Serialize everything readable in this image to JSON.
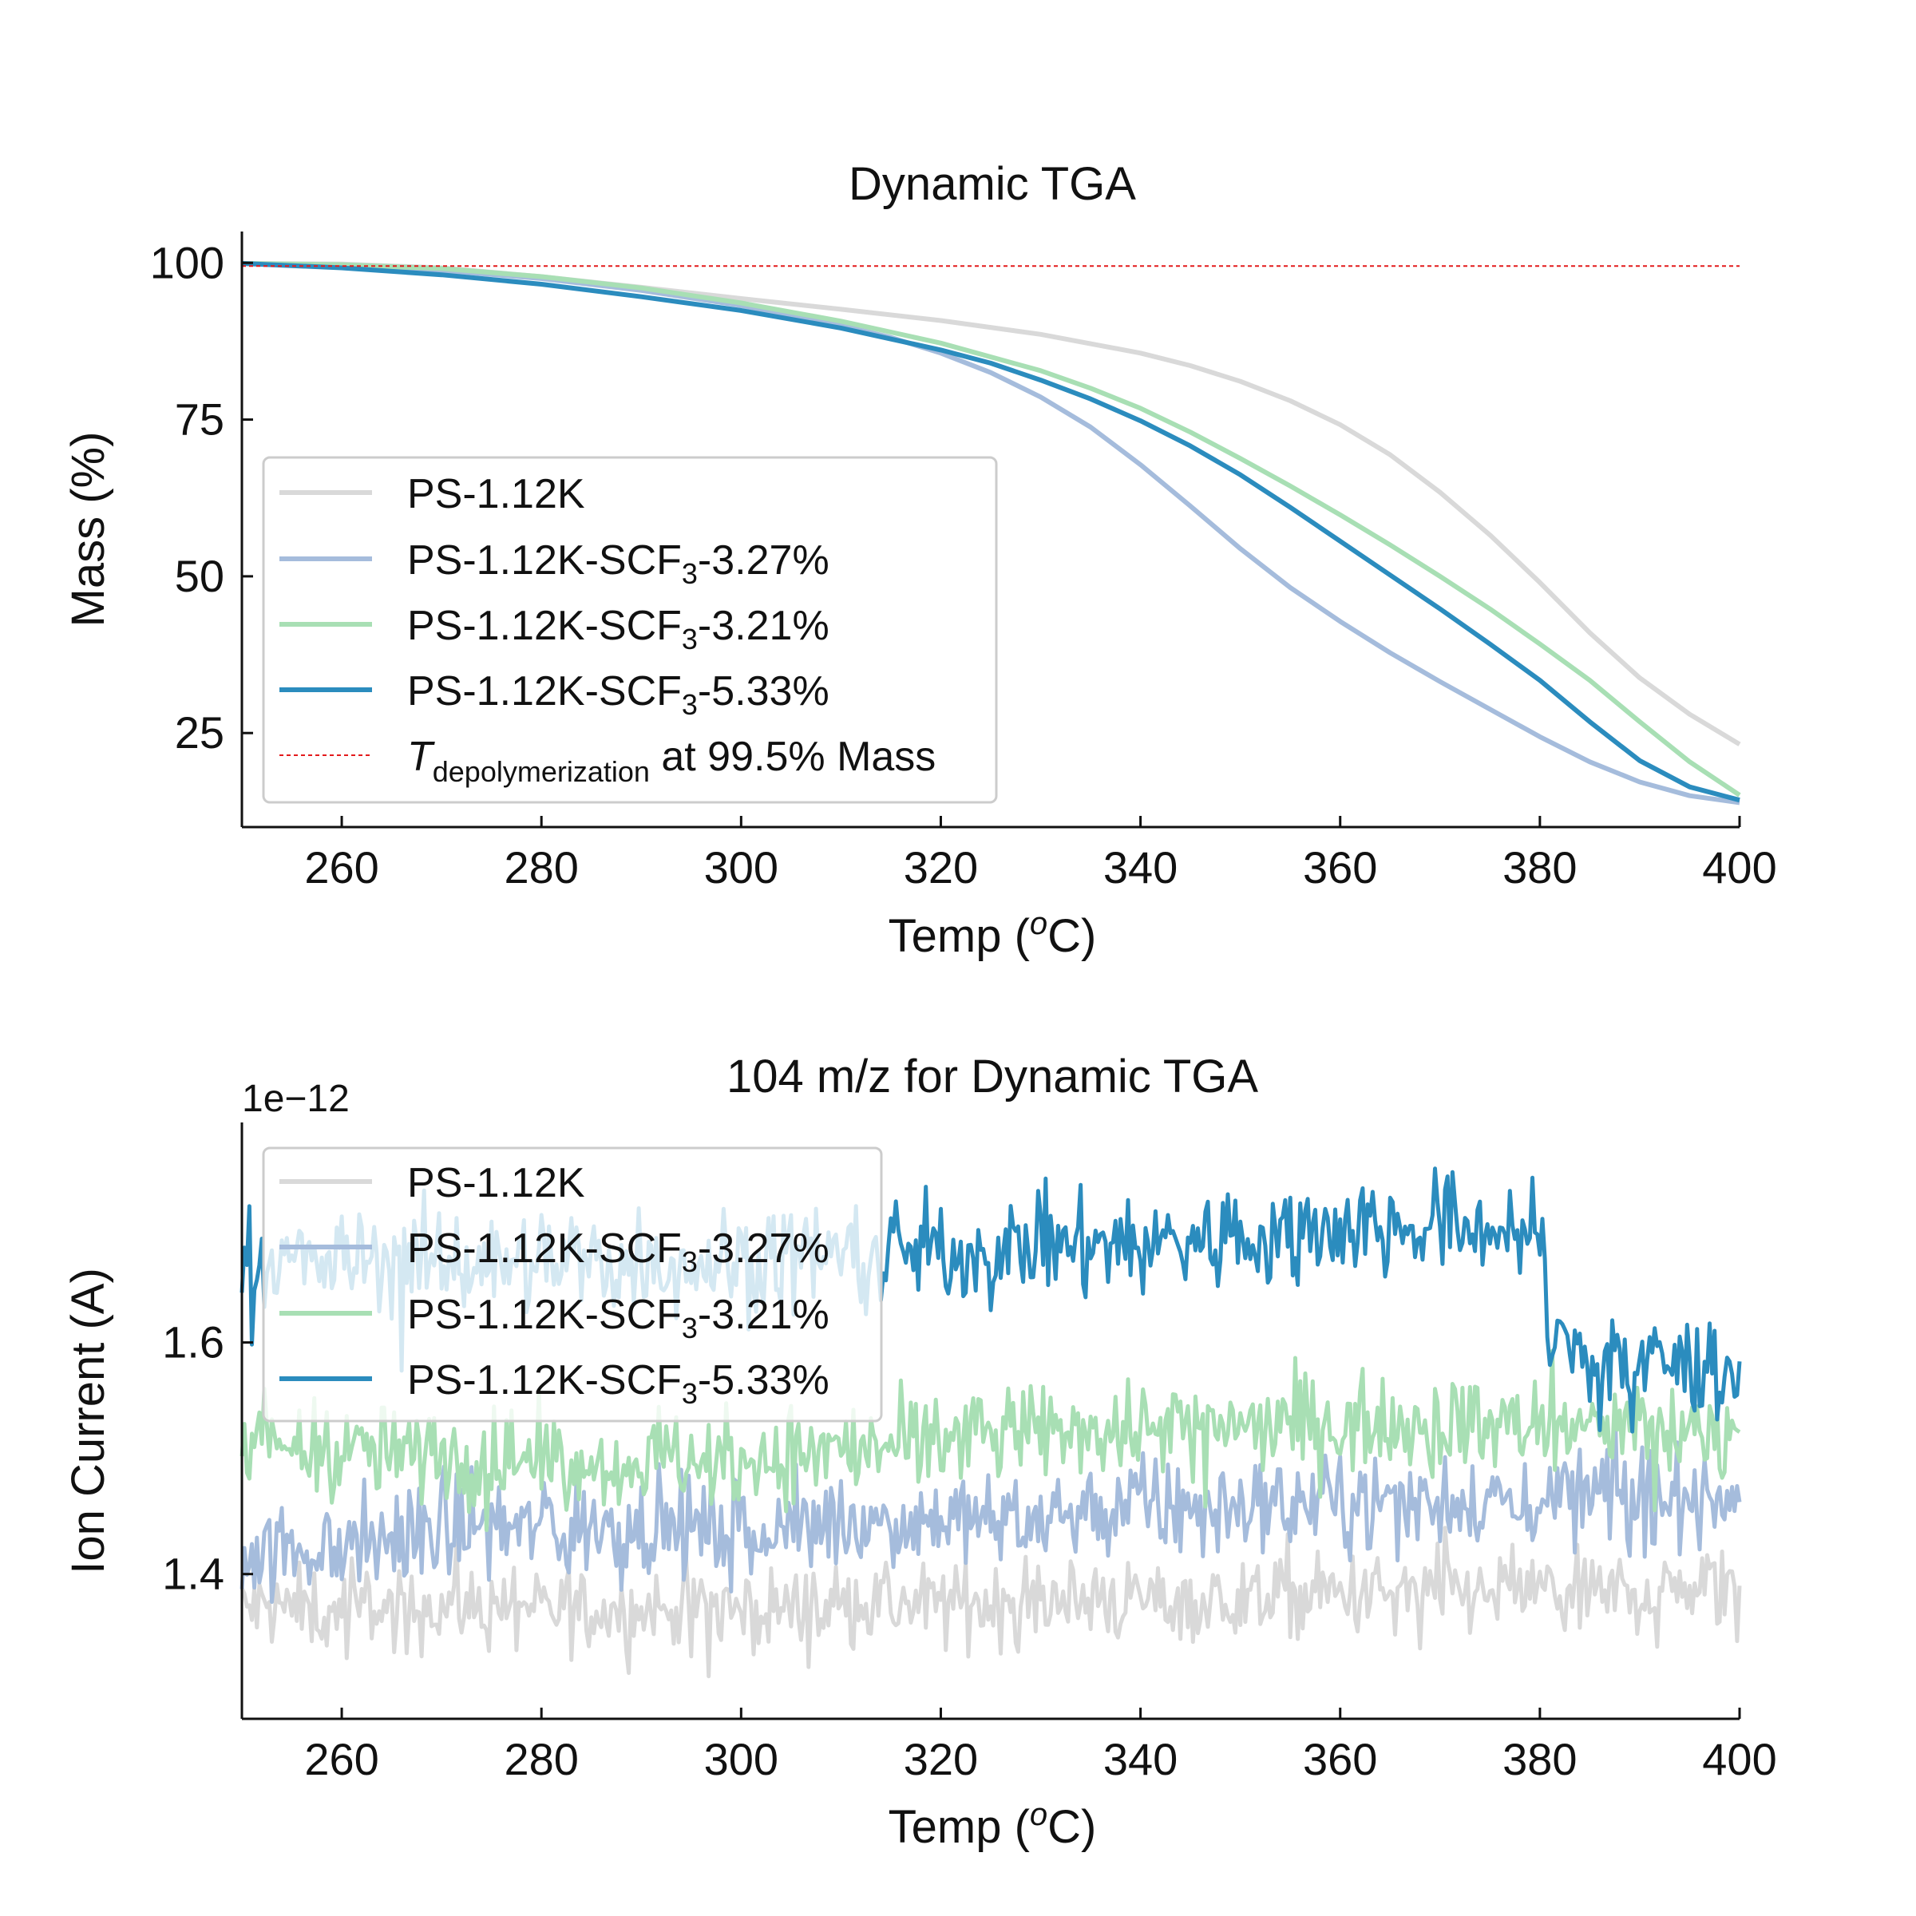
{
  "colors": {
    "ps": "#d9d9d9",
    "scf3_327": "#a5bcdc",
    "scf3_321": "#a8dfb4",
    "scf3_533": "#2b8cbe",
    "depol": "#e31a1c"
  },
  "chart_data": [
    {
      "type": "line",
      "title": "Dynamic TGA",
      "xlabel_main": "Temp (",
      "xlabel_sup": "o",
      "xlabel_end": "C)",
      "ylabel": "Mass (%)",
      "xlim": [
        250,
        400
      ],
      "ylim": [
        10,
        105
      ],
      "xticks": [
        "260",
        "280",
        "300",
        "320",
        "340",
        "360",
        "380",
        "400"
      ],
      "yticks": [
        "100",
        "75",
        "50",
        "25"
      ],
      "grid": false,
      "legend_position": "lower-left",
      "legend": [
        {
          "pre": "PS-1.12K",
          "sub": "",
          "post": "",
          "color_key": "ps"
        },
        {
          "pre": "PS-1.12K-SCF",
          "sub": "3",
          "post": "-3.27%",
          "color_key": "scf3_327"
        },
        {
          "pre": "PS-1.12K-SCF",
          "sub": "3",
          "post": "-3.21%",
          "color_key": "scf3_321"
        },
        {
          "pre": "PS-1.12K-SCF",
          "sub": "3",
          "post": "-5.33%",
          "color_key": "scf3_533"
        },
        {
          "pre": "T",
          "sub": "depolymerization",
          "post": " at 99.5% Mass",
          "color_key": "depol",
          "dashed": true
        }
      ],
      "reference_line": {
        "y": 99.5,
        "label": "T depolymerization at 99.5% Mass"
      },
      "series": [
        {
          "name": "PS-1.12K",
          "color_key": "ps",
          "x": [
            250,
            260,
            270,
            280,
            290,
            300,
            310,
            320,
            330,
            340,
            345,
            350,
            355,
            360,
            365,
            370,
            375,
            380,
            385,
            390,
            395,
            400
          ],
          "y": [
            99.9,
            99.8,
            99.2,
            97.8,
            96.1,
            94.3,
            92.6,
            90.8,
            88.6,
            85.6,
            83.6,
            81.1,
            78.0,
            74.2,
            69.4,
            63.4,
            56.6,
            49.0,
            41.0,
            33.8,
            28.0,
            23.2
          ]
        },
        {
          "name": "PS-1.12K-SCF3-3.27%",
          "color_key": "scf3_327",
          "x": [
            250,
            260,
            270,
            280,
            290,
            300,
            310,
            315,
            320,
            325,
            330,
            335,
            340,
            345,
            350,
            355,
            360,
            365,
            370,
            375,
            380,
            385,
            390,
            395,
            400
          ],
          "y": [
            99.9,
            99.6,
            98.8,
            97.5,
            95.6,
            93.2,
            90.0,
            88.1,
            85.6,
            82.5,
            78.6,
            73.8,
            67.8,
            61.2,
            54.4,
            48.2,
            42.8,
            37.8,
            33.2,
            28.8,
            24.4,
            20.4,
            17.2,
            15.0,
            13.9
          ]
        },
        {
          "name": "PS-1.12K-SCF3-3.21%",
          "color_key": "scf3_321",
          "x": [
            250,
            260,
            270,
            280,
            290,
            300,
            310,
            320,
            330,
            335,
            340,
            345,
            350,
            355,
            360,
            365,
            370,
            375,
            380,
            385,
            390,
            395,
            400
          ],
          "y": [
            99.9,
            99.7,
            99.1,
            97.8,
            96.0,
            93.6,
            90.7,
            87.2,
            82.8,
            80.0,
            76.8,
            73.0,
            68.8,
            64.4,
            59.8,
            55.0,
            50.0,
            44.8,
            39.2,
            33.4,
            26.8,
            20.4,
            15.1
          ]
        },
        {
          "name": "PS-1.12K-SCF3-5.33%",
          "color_key": "scf3_533",
          "x": [
            250,
            260,
            270,
            280,
            290,
            300,
            310,
            320,
            325,
            330,
            335,
            340,
            345,
            350,
            355,
            360,
            365,
            370,
            375,
            380,
            385,
            390,
            395,
            400
          ],
          "y": [
            99.9,
            99.2,
            98.1,
            96.6,
            94.6,
            92.4,
            89.6,
            86.1,
            84.0,
            81.3,
            78.3,
            74.8,
            70.8,
            66.2,
            61.0,
            55.6,
            50.2,
            44.8,
            39.2,
            33.4,
            26.8,
            20.6,
            16.4,
            14.3
          ]
        }
      ]
    },
    {
      "type": "line",
      "title": "104 m/z for Dynamic TGA",
      "xlabel_main": "Temp (",
      "xlabel_sup": "o",
      "xlabel_end": "C)",
      "ylabel": "Ion Current (A)",
      "offset_label": "1e−12",
      "xlim": [
        250,
        400
      ],
      "ylim": [
        1.275,
        1.79
      ],
      "xticks": [
        "260",
        "280",
        "300",
        "320",
        "340",
        "360",
        "380",
        "400"
      ],
      "yticks": [
        "1.6",
        "1.4"
      ],
      "grid": false,
      "legend_position": "upper-left",
      "legend": [
        {
          "pre": "PS-1.12K",
          "sub": "",
          "post": "",
          "color_key": "ps"
        },
        {
          "pre": "PS-1.12K-SCF",
          "sub": "3",
          "post": "-3.27%",
          "color_key": "scf3_327"
        },
        {
          "pre": "PS-1.12K-SCF",
          "sub": "3",
          "post": "-3.21%",
          "color_key": "scf3_321"
        },
        {
          "pre": "PS-1.12K-SCF",
          "sub": "3",
          "post": "-5.33%",
          "color_key": "scf3_533"
        }
      ],
      "series": [
        {
          "name": "PS-1.12K",
          "color_key": "ps",
          "x": [
            250,
            275,
            300,
            325,
            350,
            375,
            400
          ],
          "mean": [
            1.37,
            1.37,
            1.37,
            1.375,
            1.38,
            1.385,
            1.385
          ],
          "noise": 0.035
        },
        {
          "name": "PS-1.12K-SCF3-3.27%",
          "color_key": "scf3_327",
          "x": [
            250,
            275,
            300,
            325,
            350,
            375,
            400
          ],
          "mean": [
            1.42,
            1.44,
            1.44,
            1.45,
            1.46,
            1.465,
            1.47
          ],
          "noise": 0.04
        },
        {
          "name": "PS-1.12K-SCF3-3.21%",
          "color_key": "scf3_321",
          "x": [
            250,
            275,
            300,
            325,
            350,
            375,
            400
          ],
          "mean": [
            1.51,
            1.5,
            1.5,
            1.52,
            1.53,
            1.53,
            1.52
          ],
          "noise": 0.04
        },
        {
          "name": "PS-1.12K-SCF3-5.33%",
          "color_key": "scf3_533",
          "x": [
            250,
            275,
            300,
            325,
            350,
            360,
            375,
            380,
            381,
            390,
            400
          ],
          "mean": [
            1.67,
            1.67,
            1.67,
            1.68,
            1.69,
            1.7,
            1.7,
            1.69,
            1.6,
            1.58,
            1.58
          ],
          "noise": 0.045
        }
      ]
    }
  ]
}
